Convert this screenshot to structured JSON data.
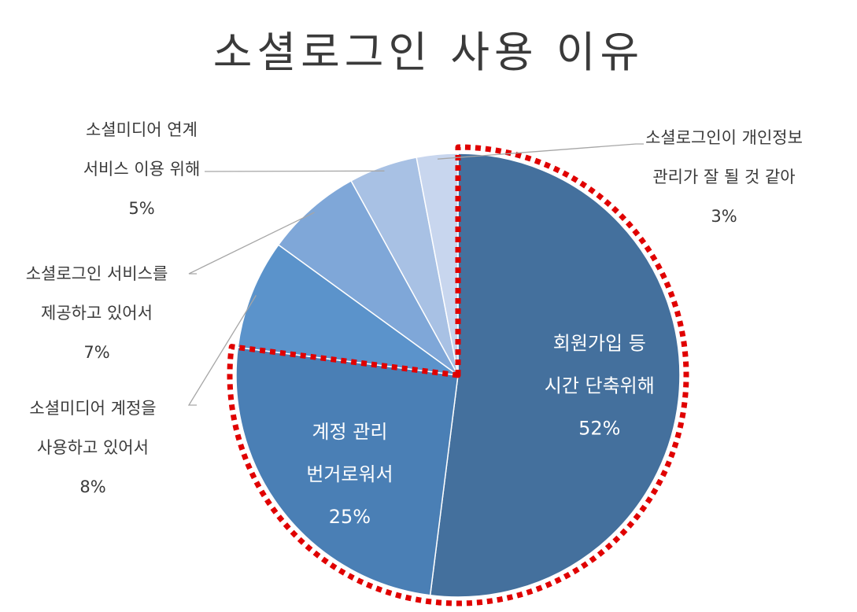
{
  "chart_data": {
    "type": "pie",
    "title": "소셜로그인 사용 이유",
    "slices": [
      {
        "label_lines": [
          "회원가입 등",
          "시간 단축위해"
        ],
        "pct_label": "52%",
        "value": 52,
        "color": "#44709d"
      },
      {
        "label_lines": [
          "계정 관리",
          "번거로워서"
        ],
        "pct_label": "25%",
        "value": 25,
        "color": "#4a7fb5"
      },
      {
        "label_lines": [
          "소셜미디어 계정을",
          "사용하고 있어서"
        ],
        "pct_label": "8%",
        "value": 8,
        "color": "#5b93cb"
      },
      {
        "label_lines": [
          "소셜로그인 서비스를",
          "제공하고 있어서"
        ],
        "pct_label": "7%",
        "value": 7,
        "color": "#7fa7d8"
      },
      {
        "label_lines": [
          "소셜미디어 연계",
          "서비스 이용 위해"
        ],
        "pct_label": "5%",
        "value": 5,
        "color": "#a8c1e4"
      },
      {
        "label_lines": [
          "소셜로그인이 개인정보",
          "관리가 잘 될 것 같아"
        ],
        "pct_label": "3%",
        "value": 3,
        "color": "#c8d6ee"
      }
    ],
    "highlight": {
      "style": "red dotted outline",
      "slices": [
        "52%",
        "25%"
      ],
      "color": "#e00000"
    }
  }
}
